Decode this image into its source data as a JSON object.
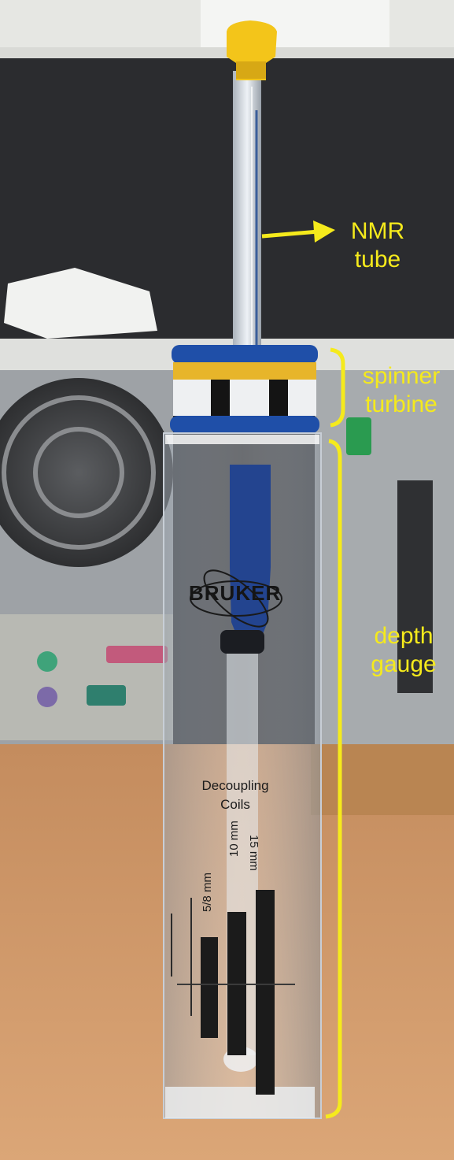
{
  "annotations": {
    "nmr_tube": [
      "NMR",
      "tube"
    ],
    "spinner_turbine": [
      "spinner",
      "turbine"
    ],
    "depth_gauge": [
      "depth",
      "gauge"
    ],
    "annotation_color": "#f5ea1c"
  },
  "gauge_print": {
    "brand": "BRUKER",
    "decoupling": [
      "Decoupling",
      "Coils"
    ],
    "mark_15": "15 mm",
    "mark_10": "10 mm",
    "mark_5_8": "5/8 mm"
  },
  "colors": {
    "cap": "#f3c51a",
    "spinner_blue": "#1f4fa8",
    "desk": "#cf9a6a"
  }
}
